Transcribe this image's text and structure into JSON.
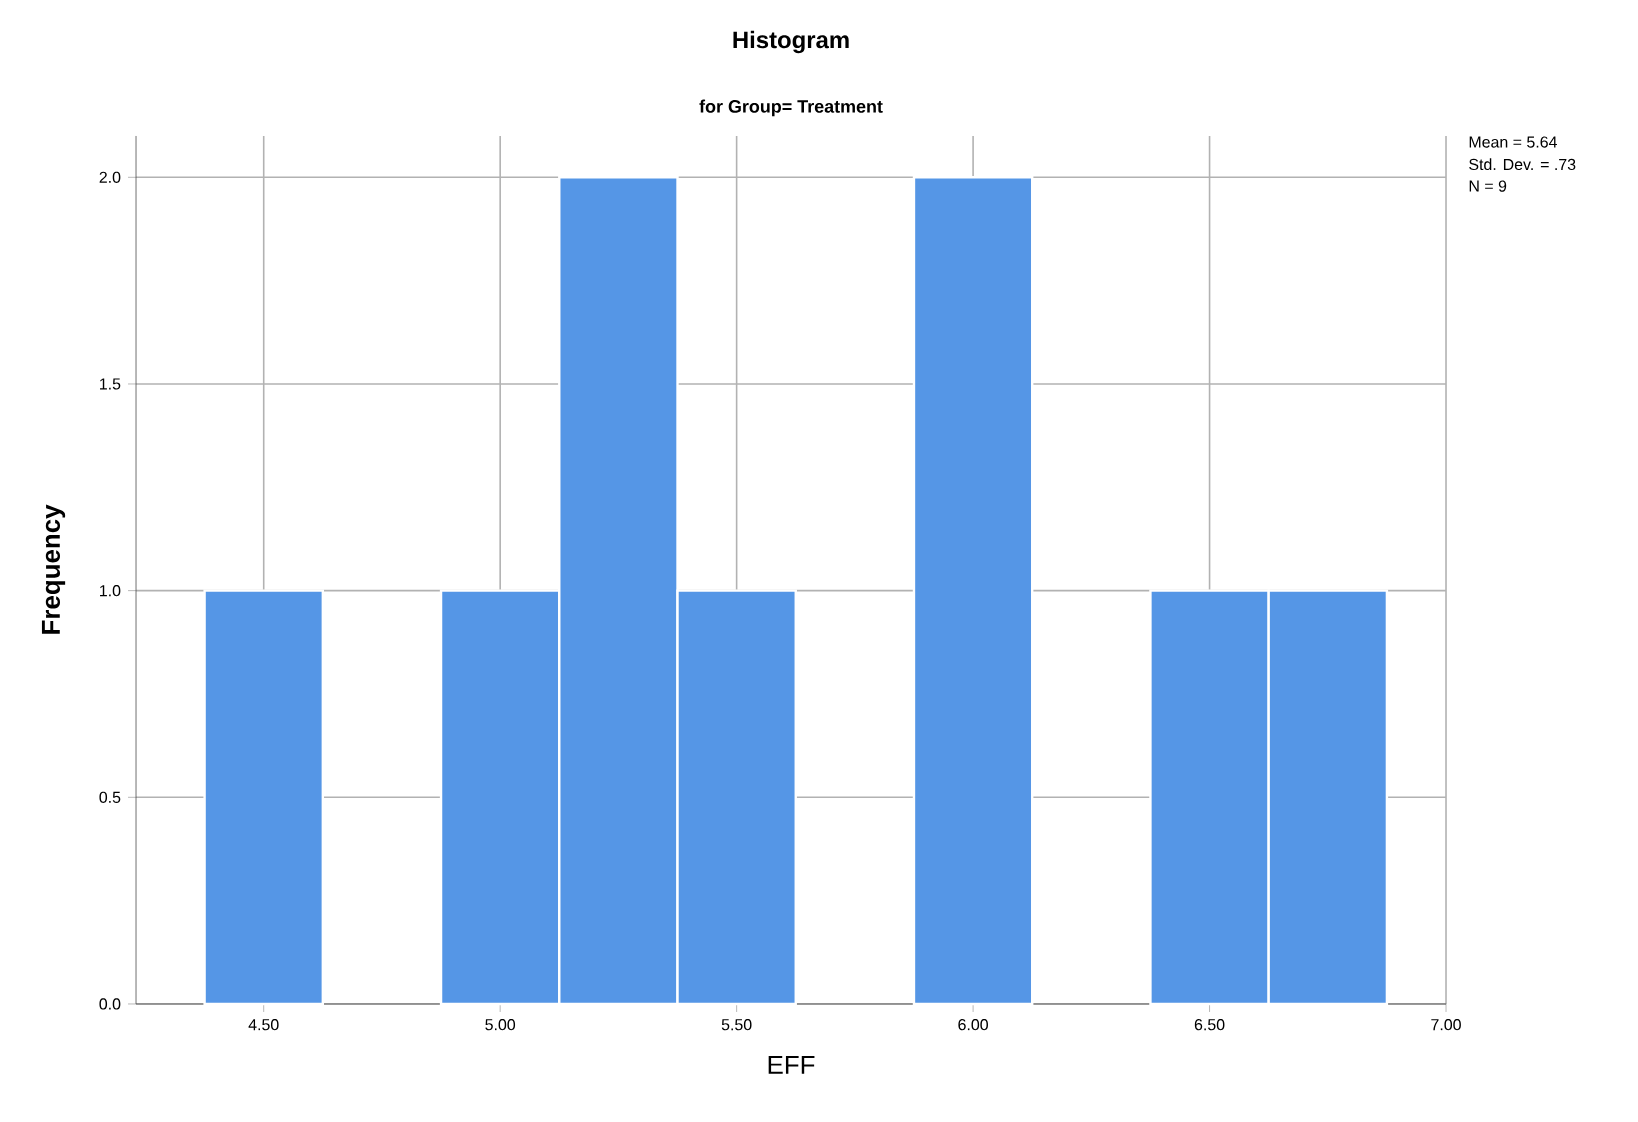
{
  "chart_data": {
    "type": "histogram",
    "title": "Histogram",
    "subtitle": "for Group= Treatment",
    "xlabel": "EFF",
    "ylabel": "Frequency",
    "bins": [
      4.375,
      4.625,
      4.875,
      5.125,
      5.375,
      5.625,
      5.875,
      6.125,
      6.375,
      6.625,
      6.875
    ],
    "values": [
      1,
      0,
      1,
      2,
      1,
      0,
      2,
      0,
      1,
      1
    ],
    "color": "#5596e6",
    "xlim": [
      4.23,
      7.0
    ],
    "ylim": [
      0,
      2.1
    ],
    "xticks": [
      {
        "value": 4.5,
        "label": "4.50"
      },
      {
        "value": 5.0,
        "label": "5.00"
      },
      {
        "value": 5.5,
        "label": "5.50"
      },
      {
        "value": 6.0,
        "label": "6.00"
      },
      {
        "value": 6.5,
        "label": "6.50"
      },
      {
        "value": 7.0,
        "label": "7.00"
      }
    ],
    "yticks": [
      {
        "value": 0,
        "label": "0.0"
      },
      {
        "value": 0.5,
        "label": "0.5"
      },
      {
        "value": 1.0,
        "label": "1.0"
      },
      {
        "value": 1.5,
        "label": "1.5"
      },
      {
        "value": 2.0,
        "label": "2.0"
      }
    ],
    "grid": true,
    "annotations": [
      "Mean = 5.64",
      "Std. Dev. = .73",
      "N = 9"
    ]
  }
}
